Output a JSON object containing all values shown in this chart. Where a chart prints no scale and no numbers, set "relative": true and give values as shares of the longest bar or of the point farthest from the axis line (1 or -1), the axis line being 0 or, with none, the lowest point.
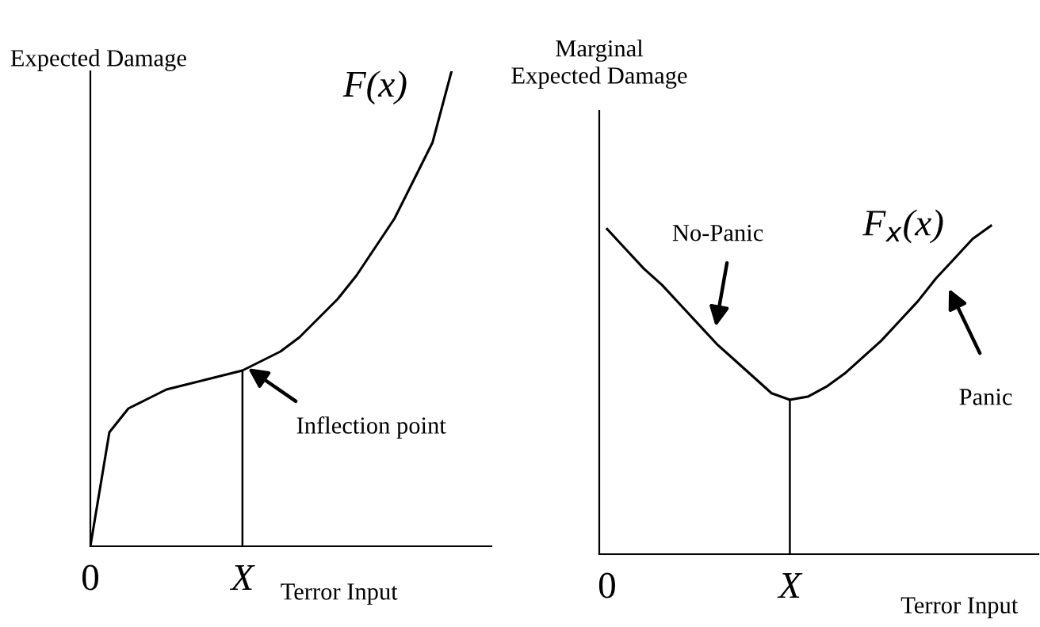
{
  "chart_data": [
    {
      "type": "line",
      "relative": true,
      "ylabel": "Expected Damage",
      "xlabel": "Terror Input",
      "categories": [
        "0",
        null,
        null,
        null,
        null,
        null,
        null,
        null,
        "X",
        null,
        null,
        null,
        null,
        null,
        null,
        null,
        null,
        null,
        null,
        null
      ],
      "series": [
        {
          "name": "F(x)",
          "color": "#000000",
          "values": [
            0,
            0.24,
            0.29,
            0.31,
            0.33,
            0.34,
            0.35,
            0.36,
            0.37,
            0.39,
            0.41,
            0.44,
            0.48,
            0.52,
            0.57,
            0.63,
            0.69,
            0.77,
            0.85,
            1
          ]
        }
      ],
      "ref_lines": [
        {
          "axis": "x",
          "value": "X",
          "color": "#000000"
        }
      ],
      "annotations": [
        "Inflection point"
      ],
      "marker": "none",
      "line_style": "solid",
      "legend": false
    },
    {
      "type": "line",
      "relative": true,
      "ylabel": "Marginal\nExpected Damage",
      "xlabel": "Terror Input",
      "categories": [
        "0",
        null,
        null,
        null,
        null,
        null,
        null,
        null,
        null,
        null,
        "X",
        null,
        null,
        null,
        null,
        null,
        null,
        null,
        null,
        null,
        null,
        null
      ],
      "series": [
        {
          "name": "F$_{x}$(x)",
          "color": "#000000",
          "values": [
            0.99,
            0.93,
            0.87,
            0.82,
            0.76,
            0.7,
            0.64,
            0.59,
            0.54,
            0.49,
            0.47,
            0.48,
            0.51,
            0.55,
            0.6,
            0.65,
            0.71,
            0.77,
            0.84,
            0.9,
            0.96,
            1
          ]
        }
      ],
      "ref_lines": [
        {
          "axis": "x",
          "value": "X",
          "color": "#000000"
        }
      ],
      "annotations": [
        "No-Panic",
        "Panic"
      ],
      "marker": "none",
      "line_style": "solid",
      "legend": false
    }
  ]
}
